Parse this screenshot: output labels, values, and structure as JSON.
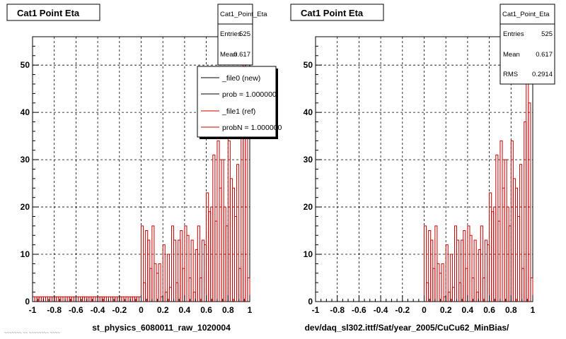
{
  "chart_data": [
    {
      "type": "bar",
      "title": "Cat1 Point Eta",
      "xlabel": "st_physics_6080011_raw_1020004",
      "xlim": [
        -1,
        1
      ],
      "ylim": [
        0,
        56
      ],
      "x_ticks": [
        "-1",
        "-0.8",
        "-0.6",
        "-0.4",
        "-0.2",
        "0",
        "0.2",
        "0.4",
        "0.6",
        "0.8",
        "1"
      ],
      "y_ticks": [
        "0",
        "10",
        "20",
        "30",
        "40",
        "50"
      ],
      "grid": true,
      "bin_width": 0.02,
      "series": [
        {
          "name": "_file1 (ref)",
          "color": "#cc0000",
          "x": [
            -1.0,
            -0.98,
            -0.96,
            -0.94,
            -0.92,
            -0.9,
            -0.88,
            -0.86,
            -0.84,
            -0.82,
            -0.8,
            -0.78,
            -0.76,
            -0.74,
            -0.72,
            -0.7,
            -0.68,
            -0.66,
            -0.64,
            -0.62,
            -0.6,
            -0.58,
            -0.56,
            -0.54,
            -0.52,
            -0.5,
            -0.48,
            -0.46,
            -0.44,
            -0.42,
            -0.4,
            -0.38,
            -0.36,
            -0.34,
            -0.32,
            -0.3,
            -0.28,
            -0.26,
            -0.24,
            -0.22,
            -0.2,
            -0.18,
            -0.16,
            -0.14,
            -0.12,
            -0.1,
            -0.08,
            -0.06,
            -0.04,
            -0.02,
            0.0,
            0.02,
            0.04,
            0.06,
            0.08,
            0.1,
            0.12,
            0.14,
            0.16,
            0.18,
            0.2,
            0.22,
            0.24,
            0.26,
            0.28,
            0.3,
            0.32,
            0.34,
            0.36,
            0.38,
            0.4,
            0.42,
            0.44,
            0.46,
            0.48,
            0.5,
            0.52,
            0.54,
            0.56,
            0.58,
            0.6,
            0.62,
            0.64,
            0.66,
            0.68,
            0.7,
            0.72,
            0.74,
            0.76,
            0.78,
            0.8,
            0.82,
            0.84,
            0.86,
            0.88,
            0.9,
            0.92,
            0.94,
            0.96,
            0.98
          ],
          "values": [
            1,
            1,
            1,
            1,
            1,
            1,
            1,
            1,
            1,
            1,
            1,
            1,
            1,
            1,
            1,
            1,
            1,
            1,
            1,
            1,
            1,
            1,
            1,
            1,
            1,
            1,
            1,
            1,
            1,
            1,
            1,
            1,
            1,
            1,
            1,
            1,
            1,
            1,
            1,
            1,
            1,
            1,
            1,
            1,
            1,
            1,
            1,
            1,
            1,
            1,
            16,
            4,
            15,
            13,
            7,
            16,
            8,
            6,
            8,
            1,
            12,
            2,
            10,
            3,
            16,
            13,
            4,
            13,
            15,
            7,
            16,
            14,
            5,
            13,
            2,
            11,
            16,
            5,
            13,
            12,
            23,
            19,
            20,
            31,
            17,
            34,
            24,
            30,
            20,
            16,
            34,
            26,
            24,
            18,
            29,
            7,
            38,
            53,
            42,
            5
          ]
        }
      ],
      "stats": {
        "name": "Cat1_Point_Eta",
        "entries_label": "Entries",
        "entries": "525",
        "mean_label": "Mean",
        "mean": "0.617"
      },
      "legend": [
        "_file0 (new)",
        "prob = 1.000000",
        "_file1 (ref)",
        "probN = 1.000000"
      ]
    },
    {
      "type": "bar",
      "title": "Cat1 Point Eta",
      "xlabel": "dev/daq_sl302.ittf/Sat/year_2005/CuCu62_MinBias/",
      "xlim": [
        -1,
        1
      ],
      "ylim": [
        0,
        56
      ],
      "x_ticks": [
        "-1",
        "-0.8",
        "-0.6",
        "-0.4",
        "-0.2",
        "0",
        "0.2",
        "0.4",
        "0.6",
        "0.8",
        "1"
      ],
      "y_ticks": [
        "0",
        "10",
        "20",
        "30",
        "40",
        "50"
      ],
      "grid": true,
      "bin_width": 0.02,
      "series": [
        {
          "name": "",
          "color": "#cc0000",
          "x": [
            0.0,
            0.02,
            0.04,
            0.06,
            0.08,
            0.1,
            0.12,
            0.14,
            0.16,
            0.18,
            0.2,
            0.22,
            0.24,
            0.26,
            0.28,
            0.3,
            0.32,
            0.34,
            0.36,
            0.38,
            0.4,
            0.42,
            0.44,
            0.46,
            0.48,
            0.5,
            0.52,
            0.54,
            0.56,
            0.58,
            0.6,
            0.62,
            0.64,
            0.66,
            0.68,
            0.7,
            0.72,
            0.74,
            0.76,
            0.78,
            0.8,
            0.82,
            0.84,
            0.86,
            0.88,
            0.9,
            0.92,
            0.94,
            0.96,
            0.98
          ],
          "values": [
            16,
            4,
            15,
            13,
            7,
            16,
            8,
            6,
            8,
            1,
            12,
            2,
            10,
            3,
            16,
            13,
            4,
            13,
            15,
            7,
            16,
            14,
            5,
            13,
            2,
            11,
            16,
            5,
            13,
            12,
            23,
            19,
            20,
            31,
            17,
            34,
            24,
            30,
            20,
            16,
            34,
            26,
            24,
            18,
            29,
            7,
            38,
            53,
            42,
            5
          ]
        }
      ],
      "stats": {
        "name": "Cat1_Point_Eta",
        "entries_label": "Entries",
        "entries": "525",
        "mean_label": "Mean",
        "mean": "0.617",
        "rms_label": "RMS",
        "rms": "0.2914"
      }
    }
  ],
  "footer_text": "~~~~~~~ ~~ ~~~~~~~~ ~~~~"
}
